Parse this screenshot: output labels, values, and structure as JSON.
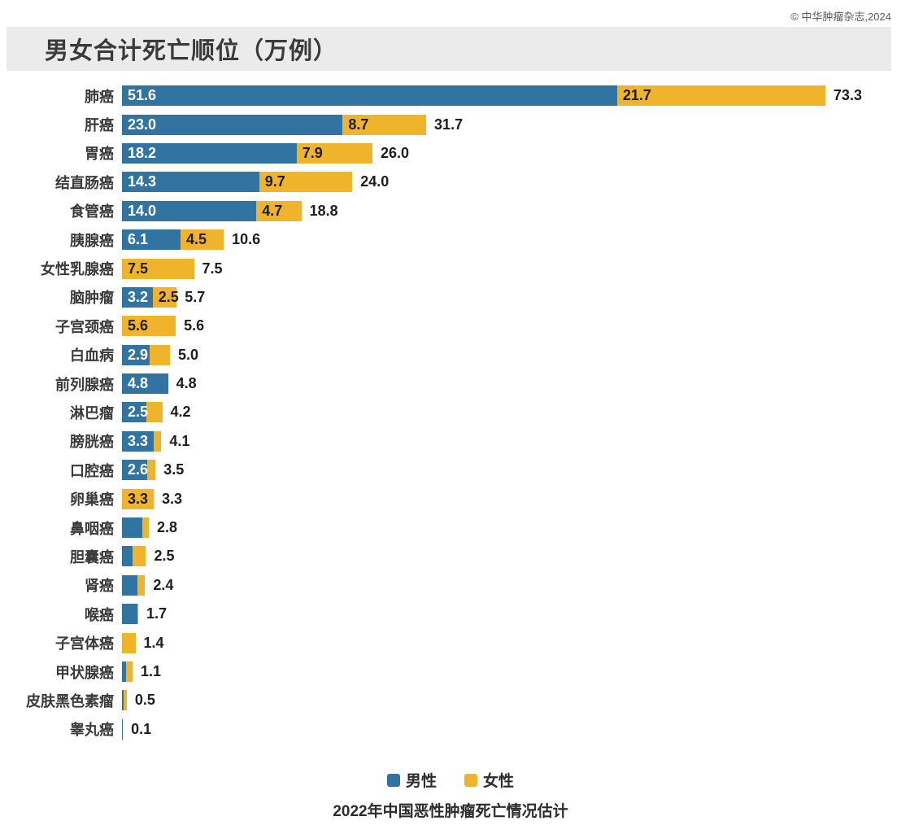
{
  "copyright": "© 中华肿瘤杂志,2024",
  "title": "男女合计死亡顺位（万例）",
  "legend": {
    "male": "男性",
    "female": "女性"
  },
  "footer": "2022年中国恶性肿瘤死亡情况估计",
  "colors": {
    "male_bar": "#3173A1",
    "female_bar": "#F0B42C",
    "title_banner_bg": "#EBEBEB",
    "male_value_text": "#FFFFFF",
    "female_value_text": "#1D1D1D",
    "total_text": "#1D1D1D"
  },
  "chart_data": {
    "type": "bar",
    "orientation": "horizontal",
    "stacked": true,
    "title": "男女合计死亡顺位（万例）",
    "subtitle": "2022年中国恶性肿瘤死亡情况估计",
    "unit": "万例",
    "xlim": [
      0,
      73.3
    ],
    "grid": false,
    "legend_position": "bottom",
    "series_names": [
      "男性",
      "女性"
    ],
    "rows": [
      {
        "label": "肺癌",
        "male": 51.6,
        "female": 21.7,
        "total": "73.3",
        "male_label": "51.6",
        "female_label": "21.7"
      },
      {
        "label": "肝癌",
        "male": 23.0,
        "female": 8.7,
        "total": "31.7",
        "male_label": "23.0",
        "female_label": "8.7"
      },
      {
        "label": "胃癌",
        "male": 18.2,
        "female": 7.9,
        "total": "26.0",
        "male_label": "18.2",
        "female_label": "7.9"
      },
      {
        "label": "结直肠癌",
        "male": 14.3,
        "female": 9.7,
        "total": "24.0",
        "male_label": "14.3",
        "female_label": "9.7"
      },
      {
        "label": "食管癌",
        "male": 14.0,
        "female": 4.7,
        "total": "18.8",
        "male_label": "14.0",
        "female_label": "4.7"
      },
      {
        "label": "胰腺癌",
        "male": 6.1,
        "female": 4.5,
        "total": "10.6",
        "male_label": "6.1",
        "female_label": "4.5"
      },
      {
        "label": "女性乳腺癌",
        "male": 0,
        "female": 7.5,
        "total": "7.5",
        "male_label": "",
        "female_label": "7.5"
      },
      {
        "label": "脑肿瘤",
        "male": 3.2,
        "female": 2.5,
        "total": "5.7",
        "male_label": "3.2",
        "female_label": "2.5"
      },
      {
        "label": "子宫颈癌",
        "male": 0,
        "female": 5.6,
        "total": "5.6",
        "male_label": "",
        "female_label": "5.6"
      },
      {
        "label": "白血病",
        "male": 2.9,
        "female": 2.1,
        "total": "5.0",
        "male_label": "2.9",
        "female_label": ""
      },
      {
        "label": "前列腺癌",
        "male": 4.8,
        "female": 0,
        "total": "4.8",
        "male_label": "4.8",
        "female_label": ""
      },
      {
        "label": "淋巴瘤",
        "male": 2.5,
        "female": 1.7,
        "total": "4.2",
        "male_label": "2.5",
        "female_label": ""
      },
      {
        "label": "膀胱癌",
        "male": 3.3,
        "female": 0.8,
        "total": "4.1",
        "male_label": "3.3",
        "female_label": ""
      },
      {
        "label": "口腔癌",
        "male": 2.6,
        "female": 0.9,
        "total": "3.5",
        "male_label": "2.6",
        "female_label": ""
      },
      {
        "label": "卵巢癌",
        "male": 0,
        "female": 3.3,
        "total": "3.3",
        "male_label": "",
        "female_label": "3.3"
      },
      {
        "label": "鼻咽癌",
        "male": 2.1,
        "female": 0.7,
        "total": "2.8",
        "male_label": "",
        "female_label": ""
      },
      {
        "label": "胆囊癌",
        "male": 1.1,
        "female": 1.4,
        "total": "2.5",
        "male_label": "",
        "female_label": ""
      },
      {
        "label": "肾癌",
        "male": 1.6,
        "female": 0.8,
        "total": "2.4",
        "male_label": "",
        "female_label": ""
      },
      {
        "label": "喉癌",
        "male": 1.6,
        "female": 0.1,
        "total": "1.7",
        "male_label": "",
        "female_label": ""
      },
      {
        "label": "子宫体癌",
        "male": 0,
        "female": 1.4,
        "total": "1.4",
        "male_label": "",
        "female_label": ""
      },
      {
        "label": "甲状腺癌",
        "male": 0.4,
        "female": 0.7,
        "total": "1.1",
        "male_label": "",
        "female_label": ""
      },
      {
        "label": "皮肤黑色素瘤",
        "male": 0.2,
        "female": 0.3,
        "total": "0.5",
        "male_label": "",
        "female_label": ""
      },
      {
        "label": "睾丸癌",
        "male": 0.1,
        "female": 0,
        "total": "0.1",
        "male_label": "",
        "female_label": ""
      }
    ]
  }
}
